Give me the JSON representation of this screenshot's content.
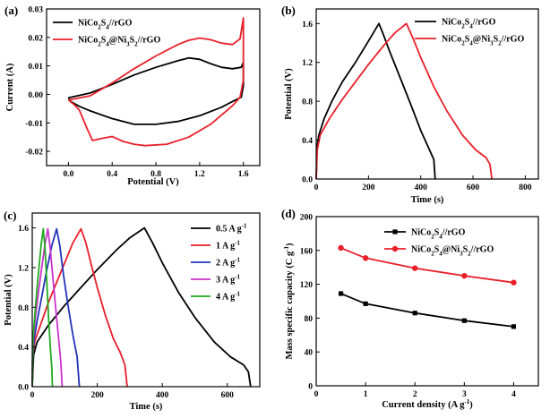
{
  "chart_data": [
    {
      "panel": "(a)",
      "type": "line",
      "title": "",
      "xlabel": "Potential (V)",
      "ylabel": "Current (A)",
      "xlim": [
        -0.2,
        1.75
      ],
      "ylim": [
        -0.025,
        0.03
      ],
      "xticks": [
        "0.0",
        "0.4",
        "0.8",
        "1.2",
        "1.6"
      ],
      "xtick_values": [
        0.0,
        0.4,
        0.8,
        1.2,
        1.6
      ],
      "yticks": [
        "-0.02",
        "-0.01",
        "0.00",
        "0.01",
        "0.02",
        "0.03"
      ],
      "ytick_values": [
        -0.02,
        -0.01,
        0.0,
        0.01,
        0.02,
        0.03
      ],
      "legend_position": "top-left",
      "series": [
        {
          "name": "NiCo2S4//rGO",
          "color": "#000000",
          "points": [
            [
              0,
              -0.0012
            ],
            [
              0.2,
              0.0005
            ],
            [
              0.4,
              0.0035
            ],
            [
              0.6,
              0.0068
            ],
            [
              0.8,
              0.0095
            ],
            [
              1.0,
              0.0118
            ],
            [
              1.1,
              0.0128
            ],
            [
              1.2,
              0.0123
            ],
            [
              1.3,
              0.0108
            ],
            [
              1.4,
              0.0095
            ],
            [
              1.5,
              0.009
            ],
            [
              1.58,
              0.0095
            ],
            [
              1.6,
              0.0112
            ],
            [
              1.6,
              0.003
            ],
            [
              1.58,
              -0.001
            ],
            [
              1.5,
              -0.0025
            ],
            [
              1.4,
              -0.0045
            ],
            [
              1.2,
              -0.0075
            ],
            [
              1.0,
              -0.0095
            ],
            [
              0.8,
              -0.0105
            ],
            [
              0.6,
              -0.0105
            ],
            [
              0.4,
              -0.0085
            ],
            [
              0.2,
              -0.0058
            ],
            [
              0.1,
              -0.0042
            ],
            [
              0.02,
              -0.0025
            ],
            [
              0,
              -0.0012
            ]
          ]
        },
        {
          "name": "NiCo2S4@Ni3S2//rGO",
          "color": "#e8202a",
          "points": [
            [
              0,
              -0.002
            ],
            [
              0.2,
              -0.0005
            ],
            [
              0.4,
              0.004
            ],
            [
              0.6,
              0.009
            ],
            [
              0.8,
              0.0135
            ],
            [
              1.0,
              0.0175
            ],
            [
              1.1,
              0.019
            ],
            [
              1.2,
              0.0198
            ],
            [
              1.3,
              0.0192
            ],
            [
              1.4,
              0.018
            ],
            [
              1.5,
              0.0175
            ],
            [
              1.57,
              0.0195
            ],
            [
              1.6,
              0.0268
            ],
            [
              1.6,
              0.005
            ],
            [
              1.57,
              -0.001
            ],
            [
              1.5,
              -0.004
            ],
            [
              1.3,
              -0.0105
            ],
            [
              1.1,
              -0.015
            ],
            [
              0.9,
              -0.0175
            ],
            [
              0.7,
              -0.018
            ],
            [
              0.6,
              -0.0175
            ],
            [
              0.5,
              -0.0165
            ],
            [
              0.4,
              -0.0148
            ],
            [
              0.3,
              -0.0155
            ],
            [
              0.22,
              -0.0162
            ],
            [
              0.17,
              -0.012
            ],
            [
              0.1,
              -0.0055
            ],
            [
              0.05,
              -0.0035
            ],
            [
              0,
              -0.002
            ]
          ]
        }
      ]
    },
    {
      "panel": "(b)",
      "type": "line",
      "title": "",
      "xlabel": "Time (s)",
      "ylabel": "Potential (V)",
      "xlim": [
        0,
        850
      ],
      "ylim": [
        0,
        1.75
      ],
      "xticks": [
        "0",
        "200",
        "400",
        "600",
        "800"
      ],
      "xtick_values": [
        0,
        200,
        400,
        600,
        800
      ],
      "yticks": [
        "0.0",
        "0.4",
        "0.8",
        "1.2",
        "1.6"
      ],
      "ytick_values": [
        0.0,
        0.4,
        0.8,
        1.2,
        1.6
      ],
      "legend_position": "top-right",
      "series": [
        {
          "name": "NiCo2S4//rGO",
          "color": "#000000",
          "points": [
            [
              0,
              0
            ],
            [
              3,
              0.32
            ],
            [
              10,
              0.45
            ],
            [
              30,
              0.62
            ],
            [
              60,
              0.8
            ],
            [
              100,
              1.0
            ],
            [
              150,
              1.2
            ],
            [
              200,
              1.42
            ],
            [
              240,
              1.6
            ],
            [
              255,
              1.5
            ],
            [
              280,
              1.32
            ],
            [
              320,
              1.05
            ],
            [
              360,
              0.78
            ],
            [
              400,
              0.5
            ],
            [
              430,
              0.32
            ],
            [
              450,
              0.2
            ],
            [
              455,
              0
            ]
          ]
        },
        {
          "name": "NiCo2S4@Ni3S2//rGO",
          "color": "#e8202a",
          "points": [
            [
              0,
              0
            ],
            [
              4,
              0.3
            ],
            [
              15,
              0.45
            ],
            [
              50,
              0.62
            ],
            [
              100,
              0.82
            ],
            [
              150,
              1.0
            ],
            [
              200,
              1.18
            ],
            [
              260,
              1.38
            ],
            [
              300,
              1.5
            ],
            [
              345,
              1.6
            ],
            [
              370,
              1.45
            ],
            [
              400,
              1.25
            ],
            [
              450,
              0.95
            ],
            [
              500,
              0.7
            ],
            [
              560,
              0.45
            ],
            [
              610,
              0.3
            ],
            [
              650,
              0.22
            ],
            [
              665,
              0.15
            ],
            [
              672,
              0
            ]
          ]
        }
      ]
    },
    {
      "panel": "(c)",
      "type": "line",
      "title": "",
      "xlabel": "Time (s)",
      "ylabel": "Potential (V)",
      "xlim": [
        0,
        700
      ],
      "ylim": [
        0,
        1.75
      ],
      "xticks": [
        "0",
        "200",
        "400",
        "600"
      ],
      "xtick_values": [
        0,
        200,
        400,
        600
      ],
      "yticks": [
        "0.0",
        "0.4",
        "0.8",
        "1.2",
        "1.6"
      ],
      "ytick_values": [
        0.0,
        0.4,
        0.8,
        1.2,
        1.6
      ],
      "legend_position": "top-right",
      "series": [
        {
          "name": "0.5 A g-1",
          "color": "#000000",
          "points": [
            [
              0,
              0
            ],
            [
              4,
              0.32
            ],
            [
              15,
              0.45
            ],
            [
              50,
              0.62
            ],
            [
              100,
              0.82
            ],
            [
              150,
              1.0
            ],
            [
              200,
              1.18
            ],
            [
              260,
              1.38
            ],
            [
              300,
              1.5
            ],
            [
              345,
              1.6
            ],
            [
              370,
              1.45
            ],
            [
              400,
              1.25
            ],
            [
              450,
              0.95
            ],
            [
              500,
              0.7
            ],
            [
              560,
              0.45
            ],
            [
              610,
              0.3
            ],
            [
              650,
              0.22
            ],
            [
              665,
              0.15
            ],
            [
              672,
              0
            ]
          ]
        },
        {
          "name": "1 A g-1",
          "color": "#e8202a",
          "points": [
            [
              0,
              0
            ],
            [
              2,
              0.33
            ],
            [
              8,
              0.46
            ],
            [
              25,
              0.62
            ],
            [
              50,
              0.85
            ],
            [
              75,
              1.05
            ],
            [
              100,
              1.25
            ],
            [
              125,
              1.45
            ],
            [
              150,
              1.59
            ],
            [
              165,
              1.45
            ],
            [
              180,
              1.25
            ],
            [
              200,
              1.0
            ],
            [
              225,
              0.72
            ],
            [
              250,
              0.48
            ],
            [
              270,
              0.35
            ],
            [
              285,
              0.22
            ],
            [
              292,
              0
            ]
          ]
        },
        {
          "name": "2 A g-1",
          "color": "#2233bb",
          "points": [
            [
              0,
              0
            ],
            [
              2,
              0.34
            ],
            [
              6,
              0.48
            ],
            [
              15,
              0.66
            ],
            [
              30,
              0.92
            ],
            [
              45,
              1.18
            ],
            [
              60,
              1.42
            ],
            [
              75,
              1.59
            ],
            [
              85,
              1.42
            ],
            [
              95,
              1.15
            ],
            [
              110,
              0.82
            ],
            [
              125,
              0.52
            ],
            [
              138,
              0.3
            ],
            [
              145,
              0
            ]
          ]
        },
        {
          "name": "3 A g-1",
          "color": "#cc33cc",
          "points": [
            [
              0,
              0
            ],
            [
              1,
              0.34
            ],
            [
              4,
              0.5
            ],
            [
              10,
              0.7
            ],
            [
              20,
              0.98
            ],
            [
              30,
              1.22
            ],
            [
              40,
              1.45
            ],
            [
              48,
              1.59
            ],
            [
              55,
              1.4
            ],
            [
              62,
              1.15
            ],
            [
              72,
              0.8
            ],
            [
              82,
              0.45
            ],
            [
              88,
              0.25
            ],
            [
              92,
              0
            ]
          ]
        },
        {
          "name": "4 A g-1",
          "color": "#22aa22",
          "points": [
            [
              0,
              0
            ],
            [
              1,
              0.35
            ],
            [
              3,
              0.5
            ],
            [
              8,
              0.72
            ],
            [
              15,
              1.0
            ],
            [
              22,
              1.25
            ],
            [
              28,
              1.45
            ],
            [
              34,
              1.59
            ],
            [
              39,
              1.4
            ],
            [
              44,
              1.1
            ],
            [
              50,
              0.72
            ],
            [
              56,
              0.38
            ],
            [
              60,
              0.2
            ],
            [
              62,
              0
            ]
          ]
        }
      ]
    },
    {
      "panel": "(d)",
      "type": "line",
      "title": "",
      "xlabel": "Current density (A g-1)",
      "ylabel": "Mass specific capacity (C g-1)",
      "xlim": [
        0,
        4.5
      ],
      "ylim": [
        0,
        200
      ],
      "xticks": [
        "0",
        "1",
        "2",
        "3",
        "4"
      ],
      "xtick_values": [
        0,
        1,
        2,
        3,
        4
      ],
      "yticks": [
        "0",
        "40",
        "80",
        "120",
        "160",
        "200"
      ],
      "ytick_values": [
        0,
        40,
        80,
        120,
        160,
        200
      ],
      "legend_position": "top-right",
      "series": [
        {
          "name": "NiCo2S4//rGO",
          "color": "#000000",
          "marker": "square",
          "points": [
            [
              0.5,
              109
            ],
            [
              1,
              97
            ],
            [
              2,
              86
            ],
            [
              3,
              77
            ],
            [
              4,
              70
            ]
          ]
        },
        {
          "name": "NiCo2S4@Ni3S2//rGO",
          "color": "#e8202a",
          "marker": "circle",
          "points": [
            [
              0.5,
              163
            ],
            [
              1,
              151
            ],
            [
              2,
              139
            ],
            [
              3,
              130
            ],
            [
              4,
              122
            ]
          ]
        }
      ]
    }
  ]
}
